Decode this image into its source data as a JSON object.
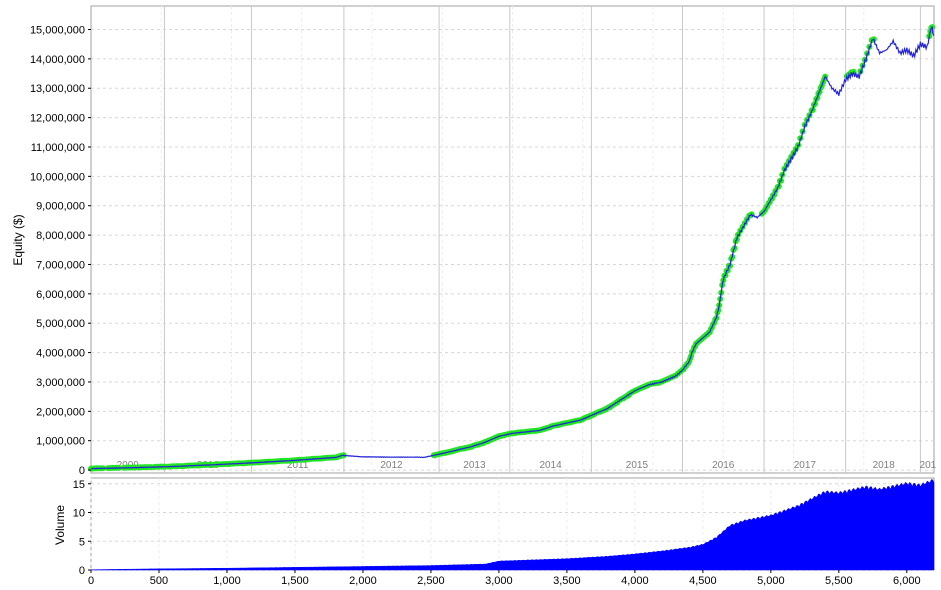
{
  "colors": {
    "equity_line": "#2323d8",
    "new_high_marker": "#22e622",
    "volume_fill": "#0000ff",
    "grid": "#d8d8d8",
    "year_divider": "#c8c8c8",
    "frame": "#a0a0a0",
    "year_label": "#808080",
    "axis_text": "#000000"
  },
  "chart_data": [
    {
      "type": "line",
      "panel": "equity",
      "ylabel": "Equity ($)",
      "ylim": [
        -100000,
        15800000
      ],
      "y_ticks": [
        0,
        1000000,
        2000000,
        3000000,
        4000000,
        5000000,
        6000000,
        7000000,
        8000000,
        9000000,
        10000000,
        11000000,
        12000000,
        13000000,
        14000000,
        15000000
      ],
      "y_tick_labels": [
        "0",
        "1,000,000",
        "2,000,000",
        "3,000,000",
        "4,000,000",
        "5,000,000",
        "6,000,000",
        "7,000,000",
        "8,000,000",
        "9,000,000",
        "10,000,000",
        "11,000,000",
        "12,000,000",
        "13,000,000",
        "14,000,000",
        "15,000,000"
      ],
      "xlim": [
        0,
        6200
      ],
      "year_boundaries": [
        540,
        1180,
        1860,
        2560,
        3080,
        3680,
        4350,
        4950,
        5550,
        6100
      ],
      "year_labels": [
        {
          "text": "2009",
          "x": 270
        },
        {
          "text": "2010",
          "x": 860
        },
        {
          "text": "2011",
          "x": 1520
        },
        {
          "text": "2012",
          "x": 2210
        },
        {
          "text": "2013",
          "x": 2820
        },
        {
          "text": "2014",
          "x": 3380
        },
        {
          "text": "2015",
          "x": 4015
        },
        {
          "text": "2016",
          "x": 4650
        },
        {
          "text": "2017",
          "x": 5250
        },
        {
          "text": "2018",
          "x": 5830
        },
        {
          "text": "201",
          "x": 6155
        }
      ],
      "series": [
        {
          "x": [
            0,
            300,
            600,
            900,
            1200,
            1500,
            1800,
            1850,
            2000,
            2200,
            2400,
            2450,
            2600,
            2800,
            2900,
            3000,
            3100,
            3200,
            3300,
            3400,
            3500,
            3600,
            3700,
            3800,
            3900,
            4000,
            4050,
            4100,
            4200,
            4250,
            4300,
            4350,
            4400,
            4420,
            4450,
            4500,
            4550,
            4600,
            4620,
            4650,
            4700,
            4750,
            4800,
            4850,
            4900,
            4950,
            5000,
            5050,
            5100,
            5150,
            5200,
            5250,
            5300,
            5350,
            5400,
            5450,
            5500,
            5550,
            5600,
            5650,
            5700,
            5750,
            5800,
            5850,
            5900,
            5950,
            6000,
            6050,
            6100,
            6150,
            6180,
            6200
          ],
          "y": [
            50000,
            80000,
            120000,
            180000,
            250000,
            330000,
            430000,
            500000,
            450000,
            440000,
            440000,
            430000,
            580000,
            800000,
            950000,
            1150000,
            1250000,
            1300000,
            1350000,
            1500000,
            1600000,
            1700000,
            1900000,
            2100000,
            2400000,
            2700000,
            2800000,
            2900000,
            3000000,
            3100000,
            3200000,
            3400000,
            3700000,
            4000000,
            4300000,
            4500000,
            4700000,
            5200000,
            5600000,
            6500000,
            7000000,
            7900000,
            8300000,
            8700000,
            8600000,
            8800000,
            9200000,
            9600000,
            10200000,
            10600000,
            11000000,
            11700000,
            12200000,
            12800000,
            13400000,
            13000000,
            12800000,
            13300000,
            13500000,
            13400000,
            14000000,
            14700000,
            14200000,
            14300000,
            14600000,
            14200000,
            14300000,
            14100000,
            14500000,
            14400000,
            15100000,
            14800000
          ]
        }
      ]
    },
    {
      "type": "area",
      "panel": "volume",
      "ylabel": "Volume",
      "ylim": [
        0,
        16
      ],
      "y_ticks": [
        0,
        5,
        10,
        15
      ],
      "y_tick_labels": [
        "0",
        "5",
        "10",
        "15"
      ],
      "xlim": [
        0,
        6200
      ],
      "x_ticks": [
        0,
        500,
        1000,
        1500,
        2000,
        2500,
        3000,
        3500,
        4000,
        4500,
        5000,
        5500,
        6000
      ],
      "x_tick_labels": [
        "0",
        "500",
        "1,000",
        "1,500",
        "2,000",
        "2,500",
        "3,000",
        "3,500",
        "4,000",
        "4,500",
        "5,000",
        "5,500",
        "6,000"
      ],
      "series": [
        {
          "x": [
            0,
            500,
            1000,
            1500,
            2000,
            2500,
            2900,
            3000,
            3500,
            3800,
            4000,
            4200,
            4400,
            4500,
            4600,
            4700,
            4800,
            5000,
            5200,
            5300,
            5400,
            5500,
            5700,
            5800,
            6000,
            6100,
            6200
          ],
          "y": [
            0.05,
            0.2,
            0.3,
            0.45,
            0.6,
            0.75,
            1.0,
            1.5,
            1.9,
            2.3,
            2.7,
            3.2,
            3.8,
            4.3,
            5.5,
            7.5,
            8.3,
            9.2,
            10.8,
            12.0,
            13.2,
            13.0,
            14.0,
            13.6,
            14.6,
            14.3,
            15.2
          ]
        }
      ]
    }
  ]
}
